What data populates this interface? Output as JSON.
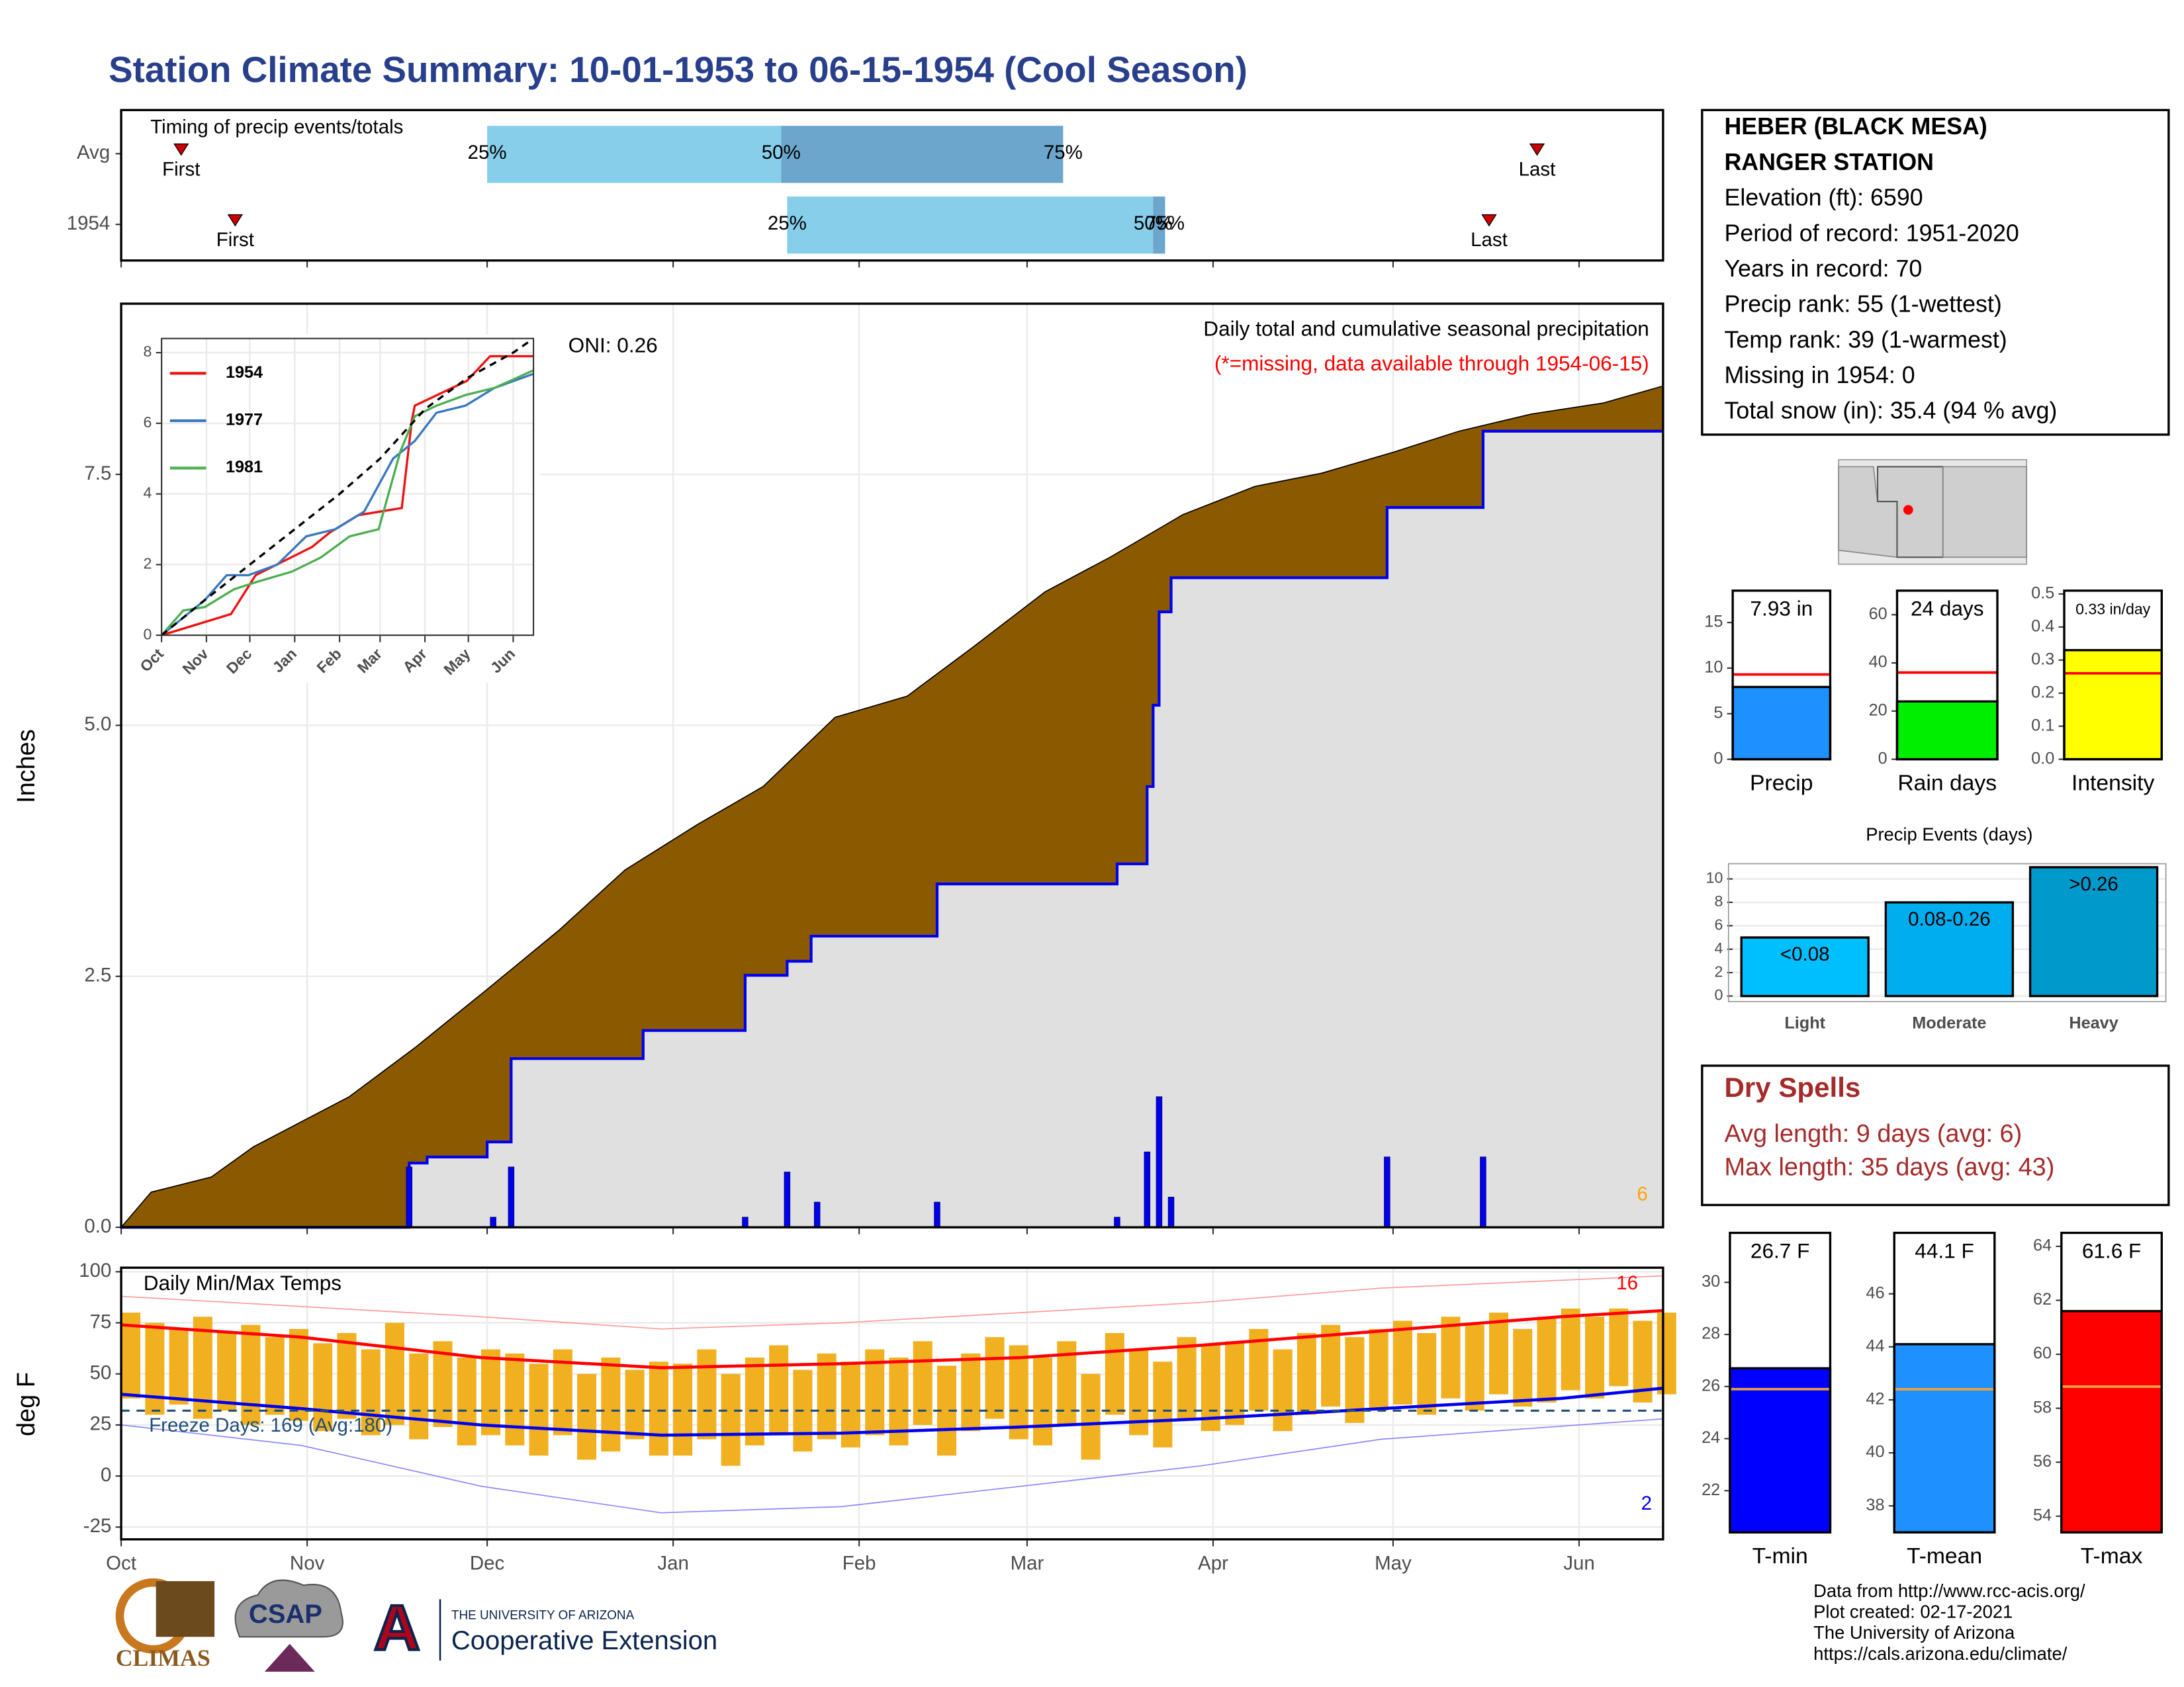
{
  "title": "Station Climate Summary: 10-01-1953 to 06-15-1954 (Cool Season)",
  "station": {
    "lines": [
      "HEBER (BLACK MESA)",
      "RANGER STATION",
      "Elevation (ft): 6590",
      "Period of record: 1951-2020",
      "Years in record: 70",
      "Precip rank: 55 (1-wettest)",
      "Temp rank: 39 (1-warmest)",
      "Missing in 1954: 0",
      "Total snow (in): 35.4 (94 % avg)"
    ]
  },
  "dry_spells": {
    "title": "Dry Spells",
    "lines": [
      "Avg length: 9 days (avg: 6)",
      "Max length: 35 days (avg: 43)"
    ]
  },
  "footer": {
    "logos": [
      "CLIMAS",
      "CSAP",
      "THE UNIVERSITY OF ARIZONA",
      "Cooperative Extension"
    ],
    "credits": [
      "Data from http://www.rcc-acis.org/",
      "Plot created: 02-17-2021",
      "The University of Arizona",
      "https://cals.arizona.edu/climate/"
    ]
  },
  "chart_data": [
    {
      "type": "timeline",
      "title": "Timing of precip events/totals",
      "categories": [
        "Avg",
        "1954"
      ],
      "xlim": [
        0,
        257
      ],
      "xticks": [
        0,
        31,
        61,
        92,
        123,
        151,
        182,
        212,
        243
      ],
      "first": [
        10,
        19
      ],
      "q25": [
        61,
        111
      ],
      "q50": [
        110,
        172
      ],
      "q75": [
        157,
        174
      ],
      "last": [
        236,
        228
      ],
      "first_label": "First",
      "last_label": "Last",
      "q_labels": [
        "25%",
        "50%",
        "75%"
      ],
      "colors": [
        "#87ceeb",
        "#6ca6cd"
      ],
      "marker_color": "#cc0000"
    },
    {
      "type": "step-area",
      "ylabel": "Inches",
      "subtitle": "Daily total and cumulative seasonal precipitation",
      "note": "(*=missing, data available through 1954-06-15)",
      "oni": "ONI: 0.26",
      "corner_value": 6,
      "xlim": [
        0,
        257
      ],
      "xticks": [
        0,
        31,
        61,
        92,
        123,
        151,
        182,
        212,
        243
      ],
      "ylim": [
        0,
        9.2
      ],
      "yticks": [
        {
          "value": 0,
          "label": "0.0"
        },
        2.5,
        {
          "value": 5,
          "label": "5.0"
        },
        7.5
      ],
      "grid": true,
      "series": [
        {
          "style": "area",
          "color": "#8b5a00",
          "x": [
            0,
            5,
            15,
            22,
            38,
            49,
            61,
            73,
            84,
            96,
            107,
            119,
            131,
            142,
            154,
            165,
            177,
            189,
            200,
            212,
            223,
            235,
            247,
            257
          ],
          "values": [
            0,
            0.35,
            0.5,
            0.8,
            1.3,
            1.79,
            2.37,
            2.96,
            3.56,
            4.01,
            4.39,
            5.08,
            5.29,
            5.78,
            6.33,
            6.68,
            7.1,
            7.38,
            7.51,
            7.72,
            7.93,
            8.1,
            8.21,
            8.38
          ]
        },
        {
          "style": "step",
          "color": "#0000ee",
          "fill": "#e0e0e0",
          "x": [
            0,
            48,
            51,
            61,
            65,
            87,
            104,
            111,
            115,
            136,
            166,
            171,
            172,
            173,
            175,
            211,
            227,
            257
          ],
          "values": [
            0,
            0.64,
            0.7,
            0.85,
            1.68,
            1.96,
            2.51,
            2.65,
            2.9,
            3.42,
            3.62,
            4.39,
            5.2,
            6.13,
            6.47,
            7.17,
            7.93,
            7.93
          ]
        },
        {
          "style": "bar",
          "color": "#0000ee",
          "x": [
            48,
            62,
            65,
            104,
            111,
            116,
            136,
            166,
            171,
            173,
            175,
            211,
            227
          ],
          "values": [
            0.6,
            0.1,
            0.6,
            0.1,
            0.55,
            0.25,
            0.25,
            0.1,
            0.75,
            1.3,
            0.3,
            0.7,
            0.7
          ]
        }
      ]
    },
    {
      "type": "line",
      "xlim": [
        0,
        257
      ],
      "xticks": [
        {
          "value": 0,
          "label": "Oct"
        },
        {
          "value": 31,
          "label": "Nov"
        },
        {
          "value": 61,
          "label": "Dec"
        },
        {
          "value": 92,
          "label": "Jan"
        },
        {
          "value": 123,
          "label": "Feb"
        },
        {
          "value": 151,
          "label": "Mar"
        },
        {
          "value": 182,
          "label": "Apr"
        },
        {
          "value": 212,
          "label": "May"
        },
        {
          "value": 243,
          "label": "Jun"
        }
      ],
      "ylim": [
        0,
        8.4
      ],
      "yticks": [
        0,
        2,
        4,
        6,
        8
      ],
      "grid": true,
      "series": [
        {
          "name": "1954",
          "color": "#ee1111",
          "x": [
            0,
            48,
            65,
            104,
            116,
            136,
            166,
            173,
            175,
            211,
            227,
            257
          ],
          "values": [
            0,
            0.6,
            1.7,
            2.5,
            2.9,
            3.4,
            3.6,
            6.1,
            6.5,
            7.2,
            7.9,
            7.9
          ]
        },
        {
          "name": "1977",
          "color": "#3a78c0",
          "x": [
            0,
            15,
            30,
            45,
            60,
            80,
            100,
            120,
            140,
            160,
            175,
            190,
            210,
            230,
            257
          ],
          "values": [
            0,
            0.5,
            1.0,
            1.7,
            1.7,
            2.0,
            2.8,
            3.0,
            3.5,
            5.0,
            5.5,
            6.3,
            6.5,
            7.0,
            7.4
          ]
        },
        {
          "name": "1981",
          "color": "#4caf50",
          "x": [
            0,
            15,
            30,
            50,
            65,
            90,
            110,
            130,
            150,
            165,
            175,
            190,
            210,
            230,
            257
          ],
          "values": [
            0,
            0.7,
            0.8,
            1.3,
            1.5,
            1.8,
            2.2,
            2.8,
            3.0,
            5.2,
            6.2,
            6.5,
            6.8,
            7.0,
            7.5
          ]
        },
        {
          "color": "#000000",
          "dash": true,
          "x": [
            0,
            30,
            61,
            92,
            123,
            151,
            182,
            212,
            243,
            257
          ],
          "values": [
            0,
            1.0,
            2.0,
            3.0,
            4.0,
            5.0,
            6.4,
            7.3,
            8.0,
            8.4
          ]
        }
      ]
    },
    {
      "type": "bar",
      "categories": [
        "Precip"
      ],
      "values": [
        7.93
      ],
      "value_labels": [
        "7.93 in"
      ],
      "average": 9.3,
      "average_color": "#ff0000",
      "color": "#1e90ff",
      "ylim": [
        0,
        18.5
      ],
      "yticks": [
        0,
        5,
        10,
        15
      ]
    },
    {
      "type": "bar",
      "categories": [
        "Rain days"
      ],
      "values": [
        24
      ],
      "value_labels": [
        "24 days"
      ],
      "average": 36,
      "average_color": "#ff0000",
      "color": "#00ee00",
      "ylim": [
        0,
        70
      ],
      "yticks": [
        0,
        20,
        40,
        60
      ]
    },
    {
      "type": "bar",
      "categories": [
        "Intensity"
      ],
      "values": [
        0.33
      ],
      "value_labels": [
        "0.33 in/day"
      ],
      "average": 0.26,
      "average_color": "#ff0000",
      "color": "#ffff00",
      "ylim": [
        0,
        0.51
      ],
      "yticks": [
        {
          "value": 0,
          "label": "0.0"
        },
        0.1,
        0.2,
        0.3,
        0.4,
        0.5
      ]
    },
    {
      "type": "bar",
      "title": "Precip Events (days)",
      "categories": [
        "Light",
        "Moderate",
        "Heavy"
      ],
      "values": [
        5,
        8,
        11
      ],
      "bar_labels": [
        "<0.08",
        "0.08-0.26",
        ">0.26"
      ],
      "colors": [
        "#00bfff",
        "#00aeef",
        "#0099cc"
      ],
      "ylim": [
        0,
        11.3
      ],
      "yticks": [
        0,
        2,
        4,
        6,
        8,
        10
      ],
      "grid": true
    },
    {
      "type": "range-bar",
      "title": "Daily Min/Max Temps",
      "ylabel": "deg F",
      "note": "Freeze Days: 169 (Avg:180)",
      "high_count": 16,
      "low_count": 2,
      "xlim": [
        0,
        257
      ],
      "xticks": [
        {
          "value": 0,
          "label": "Oct"
        },
        {
          "value": 31,
          "label": "Nov"
        },
        {
          "value": 61,
          "label": "Dec"
        },
        {
          "value": 92,
          "label": "Jan"
        },
        {
          "value": 123,
          "label": "Feb"
        },
        {
          "value": 151,
          "label": "Mar"
        },
        {
          "value": 182,
          "label": "Apr"
        },
        {
          "value": 212,
          "label": "May"
        },
        {
          "value": 243,
          "label": "Jun"
        }
      ],
      "ylim": [
        -31,
        102
      ],
      "yticks": [
        100,
        75,
        50,
        25,
        0,
        -25
      ],
      "grid": true,
      "color": "#f0b020",
      "freeze_line": 32,
      "freeze_color": "#1f4e79",
      "x": [
        0,
        4,
        8,
        12,
        16,
        20,
        24,
        28,
        32,
        36,
        40,
        44,
        48,
        52,
        56,
        60,
        64,
        68,
        72,
        76,
        80,
        84,
        88,
        92,
        96,
        100,
        104,
        108,
        112,
        116,
        120,
        124,
        128,
        132,
        136,
        140,
        144,
        148,
        152,
        156,
        160,
        164,
        168,
        172,
        176,
        180,
        184,
        188,
        192,
        196,
        200,
        204,
        208,
        212,
        216,
        220,
        224,
        228,
        232,
        236,
        240,
        244,
        248,
        252,
        256
      ],
      "max": [
        80,
        75,
        72,
        78,
        70,
        74,
        68,
        72,
        65,
        70,
        62,
        75,
        60,
        66,
        58,
        62,
        60,
        55,
        62,
        50,
        58,
        52,
        56,
        55,
        62,
        50,
        58,
        64,
        52,
        60,
        56,
        62,
        58,
        66,
        54,
        60,
        68,
        64,
        58,
        66,
        50,
        70,
        62,
        56,
        68,
        64,
        66,
        72,
        62,
        70,
        74,
        68,
        72,
        76,
        70,
        78,
        74,
        80,
        72,
        78,
        82,
        78,
        82,
        76,
        80
      ],
      "min": [
        38,
        30,
        35,
        28,
        32,
        25,
        30,
        27,
        22,
        28,
        20,
        25,
        18,
        24,
        15,
        20,
        15,
        10,
        20,
        8,
        12,
        18,
        10,
        10,
        18,
        5,
        15,
        20,
        12,
        18,
        14,
        20,
        15,
        25,
        10,
        22,
        28,
        18,
        15,
        25,
        8,
        30,
        20,
        14,
        28,
        22,
        25,
        32,
        22,
        30,
        34,
        26,
        32,
        35,
        30,
        38,
        32,
        40,
        34,
        36,
        42,
        38,
        44,
        36,
        40
      ],
      "series": [
        {
          "color": "#ff0000",
          "width": 2.2,
          "x": [
            0,
            30,
            60,
            90,
            120,
            150,
            180,
            210,
            240,
            257
          ],
          "values": [
            74,
            68,
            58,
            53,
            55,
            58,
            64,
            71,
            78,
            81
          ]
        },
        {
          "color": "#0000ee",
          "width": 2.2,
          "x": [
            0,
            30,
            60,
            90,
            120,
            150,
            180,
            210,
            240,
            257
          ],
          "values": [
            40,
            33,
            25,
            20,
            21,
            24,
            28,
            33,
            38,
            43
          ]
        },
        {
          "color": "#ff9999",
          "width": 0.8,
          "x": [
            0,
            60,
            90,
            120,
            150,
            180,
            210,
            257
          ],
          "values": [
            88,
            78,
            72,
            75,
            80,
            85,
            92,
            98
          ]
        },
        {
          "color": "#8888ff",
          "width": 0.8,
          "x": [
            0,
            30,
            60,
            90,
            120,
            150,
            180,
            210,
            257
          ],
          "values": [
            25,
            15,
            -5,
            -18,
            -15,
            -5,
            5,
            18,
            28
          ]
        }
      ]
    },
    {
      "type": "bar",
      "categories": [
        "T-min"
      ],
      "values": [
        26.7
      ],
      "value_labels": [
        "26.7 F"
      ],
      "average": 25.9,
      "average_color": "#e8a33d",
      "color": "#0000ff",
      "ylim": [
        20.4,
        31.9
      ],
      "yticks": [
        22,
        24,
        26,
        28,
        30
      ]
    },
    {
      "type": "bar",
      "categories": [
        "T-mean"
      ],
      "values": [
        44.1
      ],
      "value_labels": [
        "44.1 F"
      ],
      "average": 42.4,
      "average_color": "#e8a33d",
      "color": "#1e90ff",
      "ylim": [
        37,
        48.3
      ],
      "yticks": [
        38,
        40,
        42,
        44,
        46
      ]
    },
    {
      "type": "bar",
      "categories": [
        "T-max"
      ],
      "values": [
        61.6
      ],
      "value_labels": [
        "61.6 F"
      ],
      "average": 58.8,
      "average_color": "#e8a33d",
      "color": "#ff0000",
      "ylim": [
        53.4,
        64.5
      ],
      "yticks": [
        54,
        56,
        58,
        60,
        62,
        64
      ]
    }
  ]
}
